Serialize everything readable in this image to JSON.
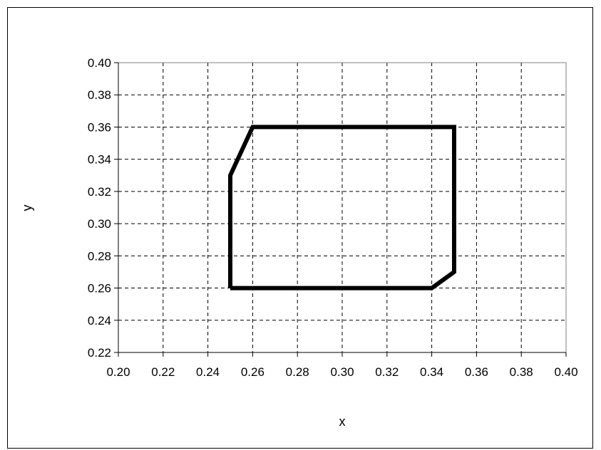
{
  "chart_data": {
    "type": "line",
    "title": "",
    "xlabel": "x",
    "ylabel": "y",
    "xlim": [
      0.2,
      0.4
    ],
    "ylim": [
      0.22,
      0.4
    ],
    "x_ticks": [
      "0.20",
      "0.22",
      "0.24",
      "0.26",
      "0.28",
      "0.30",
      "0.32",
      "0.34",
      "0.36",
      "0.38",
      "0.40"
    ],
    "y_ticks": [
      "0.22",
      "0.24",
      "0.26",
      "0.28",
      "0.30",
      "0.32",
      "0.34",
      "0.36",
      "0.38",
      "0.40"
    ],
    "grid": true,
    "legend": "none",
    "series": [
      {
        "color": "#000000",
        "points": [
          {
            "x": 0.25,
            "y": 0.26
          },
          {
            "x": 0.25,
            "y": 0.33
          },
          {
            "x": 0.26,
            "y": 0.36
          },
          {
            "x": 0.35,
            "y": 0.36
          },
          {
            "x": 0.35,
            "y": 0.27
          },
          {
            "x": 0.34,
            "y": 0.26
          },
          {
            "x": 0.25,
            "y": 0.26
          }
        ]
      }
    ]
  }
}
